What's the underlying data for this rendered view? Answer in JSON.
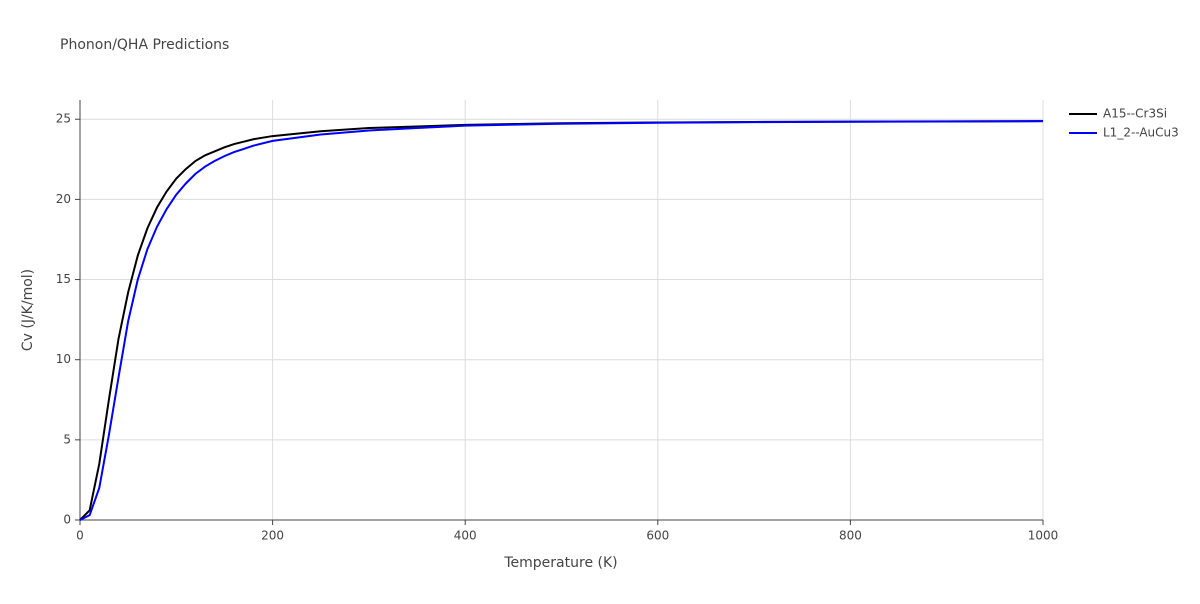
{
  "chart_data": {
    "type": "line",
    "title": "Phonon/QHA Predictions",
    "x_label": "Temperature (K)",
    "y_label": "Cv (J/K/mol)",
    "x": [
      0,
      10,
      20,
      30,
      40,
      50,
      60,
      70,
      80,
      90,
      100,
      110,
      120,
      130,
      140,
      150,
      160,
      170,
      180,
      200,
      250,
      300,
      350,
      400,
      500,
      600,
      700,
      800,
      900,
      1000
    ],
    "series": [
      {
        "name": "A15--Cr3Si",
        "color": "#000000",
        "values": [
          0,
          0.6,
          3.5,
          7.5,
          11.3,
          14.2,
          16.5,
          18.2,
          19.5,
          20.5,
          21.3,
          21.9,
          22.4,
          22.75,
          23.0,
          23.25,
          23.45,
          23.6,
          23.75,
          23.95,
          24.25,
          24.45,
          24.55,
          24.65,
          24.75,
          24.8,
          24.83,
          24.85,
          24.87,
          24.88
        ]
      },
      {
        "name": "L1_2--AuCu3",
        "color": "#0000ff",
        "values": [
          0,
          0.3,
          2.0,
          5.3,
          8.9,
          12.4,
          15.0,
          16.9,
          18.3,
          19.4,
          20.3,
          21.0,
          21.6,
          22.05,
          22.4,
          22.7,
          22.95,
          23.15,
          23.35,
          23.65,
          24.05,
          24.3,
          24.45,
          24.6,
          24.72,
          24.78,
          24.82,
          24.84,
          24.86,
          24.88
        ]
      }
    ],
    "xlim": [
      0,
      1000
    ],
    "xticks": [
      0,
      200,
      400,
      600,
      800,
      1000
    ],
    "ylim": [
      0,
      26.2
    ],
    "yticks": [
      0,
      5,
      10,
      15,
      20,
      25
    ],
    "grid": true,
    "legend": "right"
  }
}
